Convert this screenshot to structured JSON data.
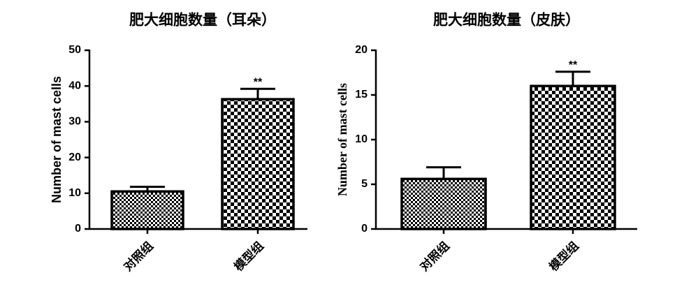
{
  "chart_data": [
    {
      "type": "bar",
      "title": "肥大细胞数量（耳朵）",
      "y_label": "Number of mast cells",
      "categories": [
        "对照组",
        "模型组"
      ],
      "values": [
        10.5,
        36.3
      ],
      "errors": [
        1.3,
        2.9
      ],
      "significance": [
        null,
        "**"
      ],
      "color": "#000000",
      "ylim": [
        0,
        50
      ],
      "yticks": [
        0,
        10,
        20,
        30,
        40,
        50
      ]
    },
    {
      "type": "bar",
      "title": "肥大细胞数量（皮肤）",
      "y_label": "Number of mast cells",
      "categories": [
        "对照组",
        "模型组"
      ],
      "values": [
        5.6,
        16.0
      ],
      "errors": [
        1.3,
        1.6
      ],
      "significance": [
        null,
        "**"
      ],
      "color": "#000000",
      "ylim": [
        0,
        20
      ],
      "yticks": [
        0,
        5,
        10,
        15,
        20
      ]
    }
  ]
}
